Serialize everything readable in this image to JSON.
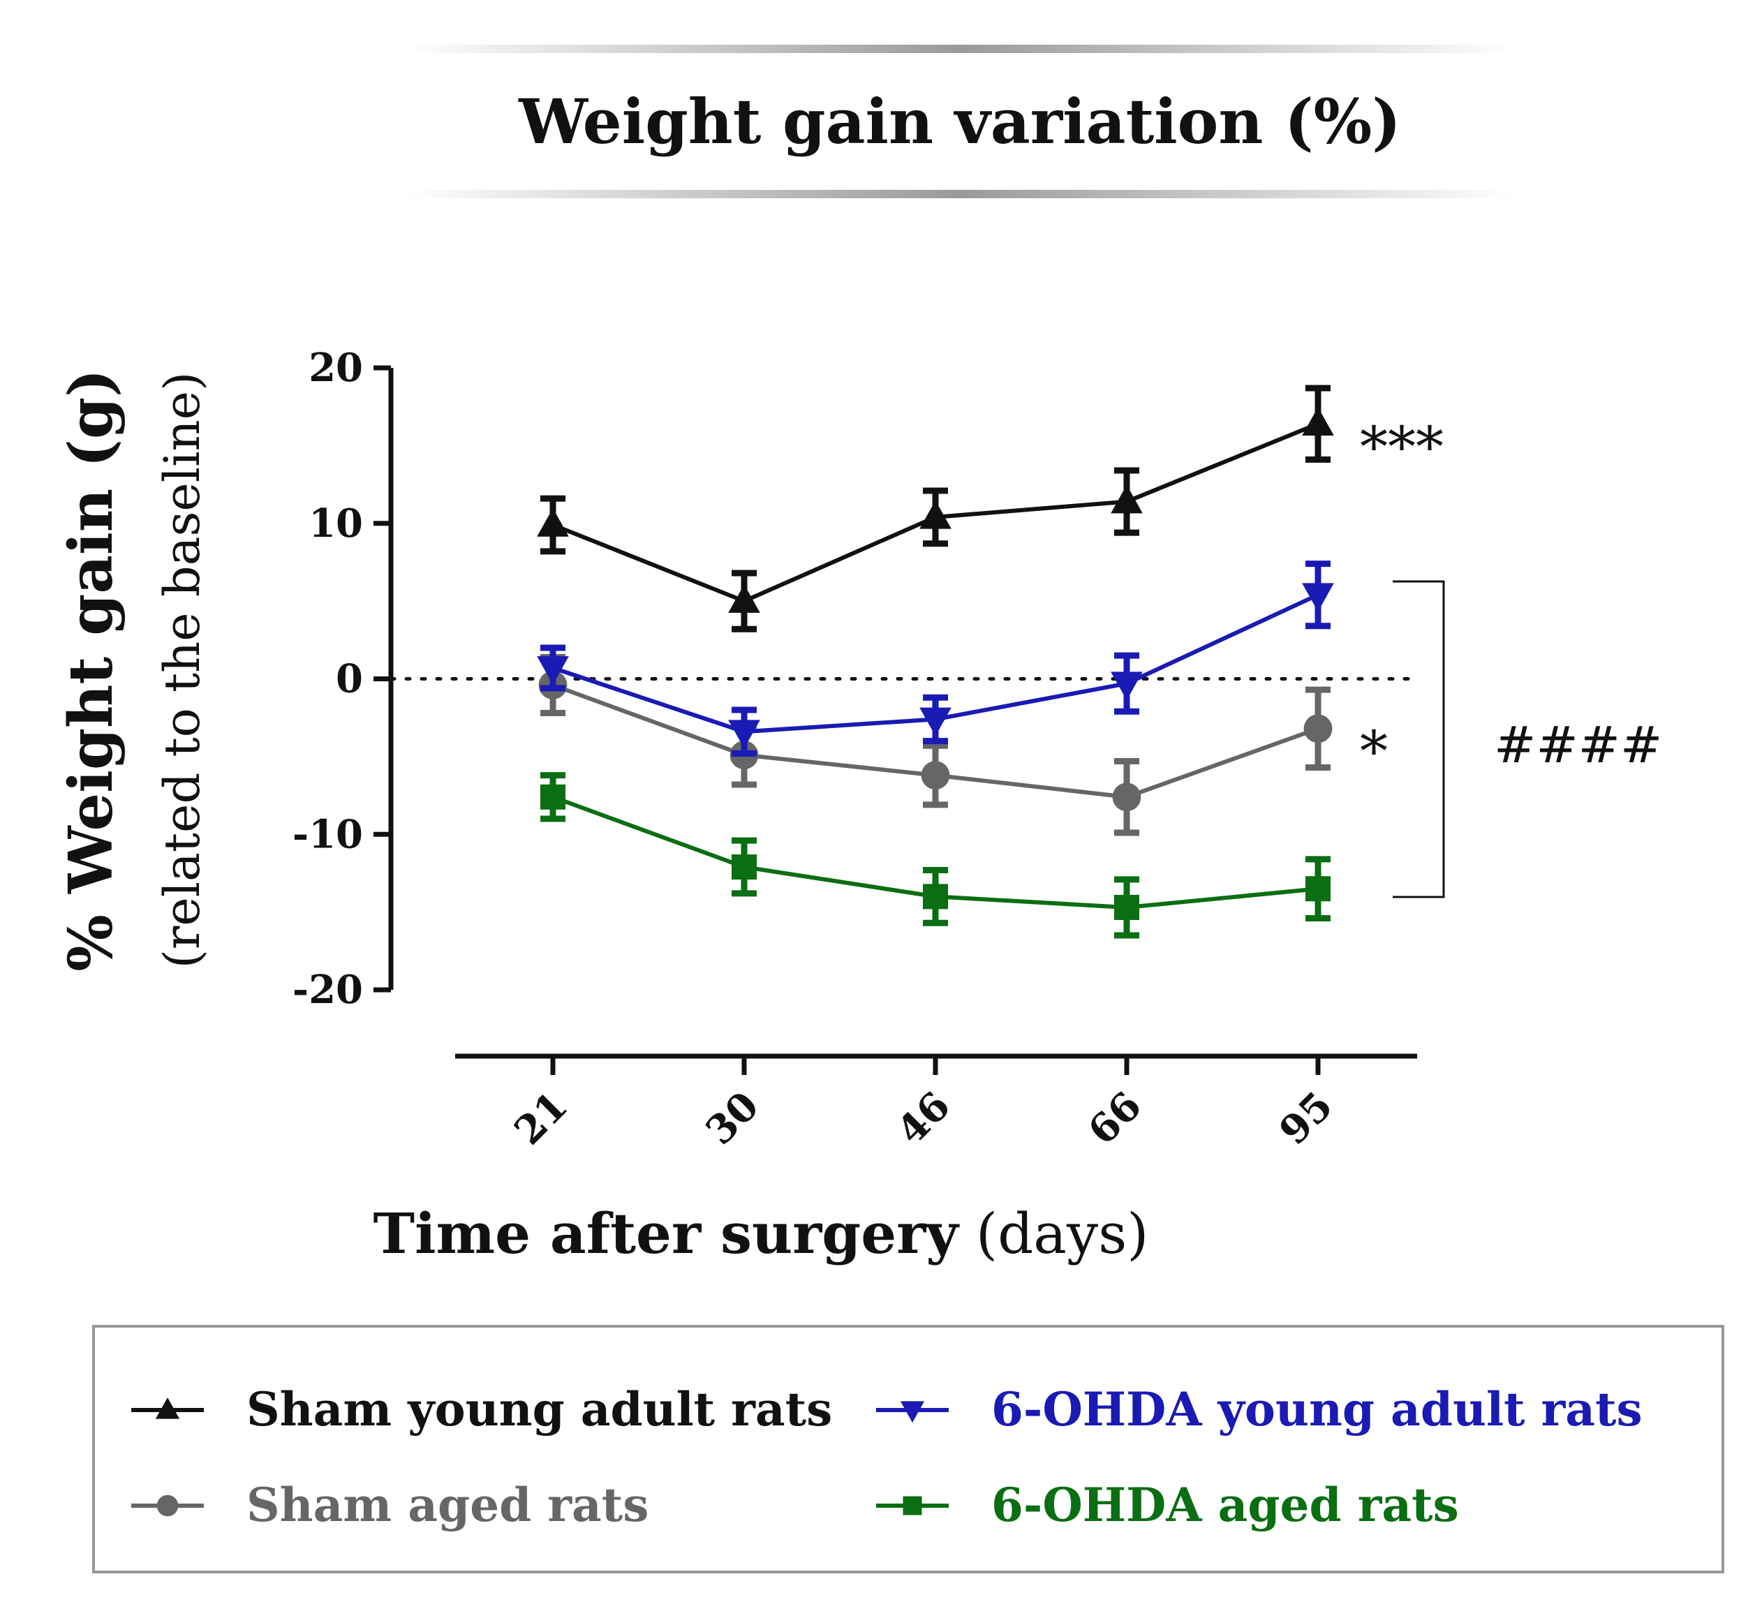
{
  "colors": {
    "sham_young": "#111111",
    "ohda_young": "#1a1ab4",
    "sham_aged": "#666666",
    "ohda_aged": "#0a6e12"
  },
  "chart_data": {
    "type": "line",
    "title": "Weight gain variation (%)",
    "xlabel_bold": "Time after surgery",
    "xlabel_normal": "(days)",
    "ylabel_bold": "% Weight gain (g)",
    "ylabel_normal": "(related to the baseline)",
    "categories": [
      "21",
      "30",
      "46",
      "66",
      "95"
    ],
    "ylim": [
      -20,
      20
    ],
    "yticks": [
      "20",
      "10",
      "0",
      "-10",
      "-20"
    ],
    "ytick_values": [
      20,
      10,
      0,
      -10,
      -20
    ],
    "baseline": 0,
    "series": [
      {
        "name": "Sham young adult rats",
        "marker": "triangle-up",
        "color_key": "sham_young",
        "values": [
          9.9,
          5.0,
          10.4,
          11.4,
          16.4
        ],
        "errors": [
          1.7,
          1.8,
          1.7,
          2.0,
          2.3
        ]
      },
      {
        "name": "6-OHDA young adult rats",
        "marker": "triangle-down",
        "color_key": "ohda_young",
        "values": [
          0.7,
          -3.4,
          -2.6,
          -0.3,
          5.4
        ],
        "errors": [
          1.3,
          1.4,
          1.4,
          1.8,
          2.0
        ]
      },
      {
        "name": "Sham aged rats",
        "marker": "circle",
        "color_key": "sham_aged",
        "values": [
          -0.4,
          -4.9,
          -6.2,
          -7.6,
          -3.2
        ],
        "errors": [
          1.8,
          1.9,
          1.9,
          2.3,
          2.5
        ]
      },
      {
        "name": "6-OHDA aged rats",
        "marker": "square",
        "color_key": "ohda_aged",
        "values": [
          -7.6,
          -12.1,
          -14.0,
          -14.7,
          -13.5
        ],
        "errors": [
          1.4,
          1.7,
          1.7,
          1.8,
          1.9
        ]
      }
    ],
    "annotations": {
      "sham_young_sig": "***",
      "sham_aged_sig": "*",
      "bracket_sig": "####"
    },
    "legend": {
      "placement": "bottom",
      "rows": [
        [
          "Sham young adult rats",
          "6-OHDA young adult rats"
        ],
        [
          "Sham aged rats",
          "6-OHDA aged rats"
        ]
      ]
    }
  }
}
